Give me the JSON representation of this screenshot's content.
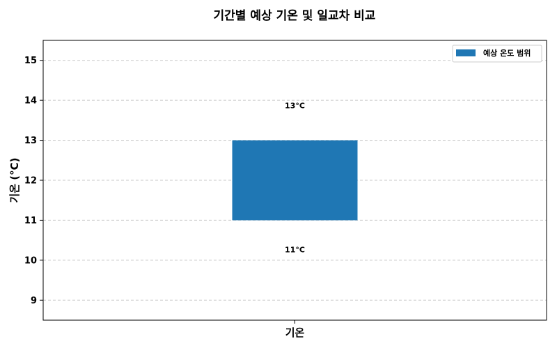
{
  "chart_data": {
    "type": "bar",
    "title": "기간별 예상 기온 및 일교차 비교",
    "xlabel": "",
    "ylabel": "기온 (°C)",
    "categories": [
      "기온"
    ],
    "series": [
      {
        "name": "예상 온도 범위",
        "low": [
          11
        ],
        "high": [
          13
        ],
        "color": "#1f77b4"
      }
    ],
    "data_labels": {
      "high": "13°C",
      "low": "11°C"
    },
    "ylim": [
      8.5,
      15.5
    ],
    "yticks": [
      9,
      10,
      11,
      12,
      13,
      14,
      15
    ],
    "grid": "horizontal-dashed",
    "legend_position": "top-right"
  }
}
